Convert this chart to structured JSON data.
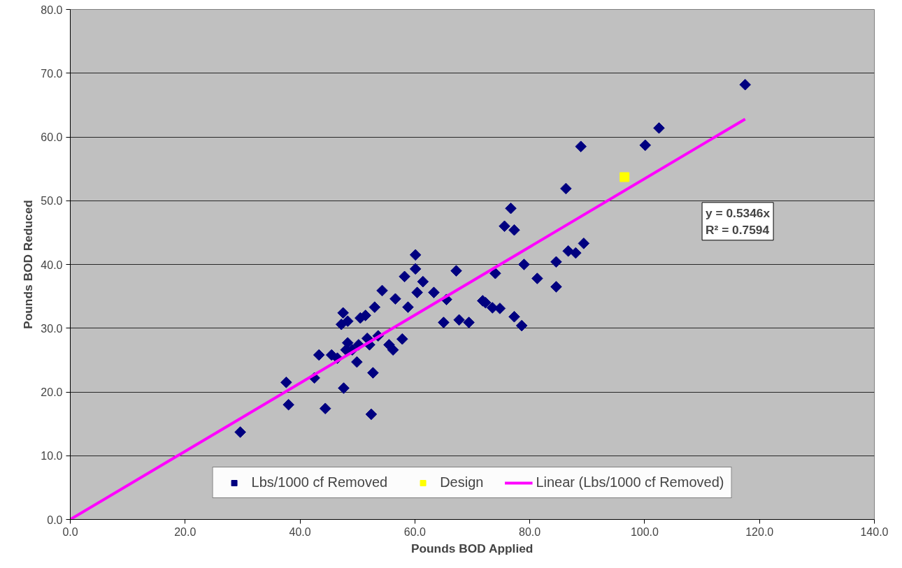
{
  "chart_data": {
    "type": "scatter",
    "xlabel": "Pounds BOD Applied",
    "ylabel": "Pounds BOD Reduced",
    "xlim": [
      0,
      140
    ],
    "ylim": [
      0,
      80
    ],
    "xticks": [
      {
        "value": 0,
        "label": "0.0"
      },
      {
        "value": 20,
        "label": "20.0"
      },
      {
        "value": 40,
        "label": "40.0"
      },
      {
        "value": 60,
        "label": "60.0"
      },
      {
        "value": 80,
        "label": "80.0"
      },
      {
        "value": 100,
        "label": "100.0"
      },
      {
        "value": 120,
        "label": "120.0"
      },
      {
        "value": 140,
        "label": "140.0"
      }
    ],
    "yticks": [
      {
        "value": 0,
        "label": "0.0"
      },
      {
        "value": 10,
        "label": "10.0"
      },
      {
        "value": 20,
        "label": "20.0"
      },
      {
        "value": 30,
        "label": "30.0"
      },
      {
        "value": 40,
        "label": "40.0"
      },
      {
        "value": 50,
        "label": "50.0"
      },
      {
        "value": 60,
        "label": "60.0"
      },
      {
        "value": 70,
        "label": "70.0"
      },
      {
        "value": 80,
        "label": "80.0"
      }
    ],
    "grid": "y",
    "legend": "bottom",
    "annotations": [
      "y = 0.5346x",
      "R² = 0.7594"
    ],
    "series": [
      {
        "name": "Lbs/1000 cf Removed",
        "marker": "diamond",
        "color": "#000080",
        "x": [
          29.6,
          37.6,
          38.0,
          42.5,
          43.3,
          44.4,
          45.5,
          46.5,
          47.2,
          47.5,
          47.6,
          48.3,
          48.3,
          48.0,
          49.1,
          49.9,
          50.2,
          50.5,
          51.4,
          51.7,
          52.1,
          52.4,
          52.7,
          53.0,
          53.6,
          54.3,
          55.5,
          56.2,
          56.6,
          57.8,
          58.2,
          58.8,
          60.1,
          60.1,
          60.4,
          61.4,
          63.3,
          65.5,
          65.0,
          67.2,
          67.7,
          69.4,
          71.8,
          72.3,
          73.5,
          74.0,
          74.8,
          75.6,
          76.7,
          77.3,
          77.3,
          78.6,
          79.0,
          81.3,
          84.6,
          84.6,
          86.3,
          86.7,
          88.0,
          88.9,
          89.4,
          100.1,
          102.5,
          117.5
        ],
        "values": [
          13.7,
          21.5,
          18.0,
          22.2,
          25.8,
          17.4,
          25.8,
          25.3,
          30.6,
          32.4,
          20.6,
          31.1,
          27.7,
          26.6,
          26.6,
          24.7,
          27.4,
          31.6,
          32.0,
          28.4,
          27.4,
          16.5,
          23.0,
          33.3,
          28.8,
          35.9,
          27.4,
          26.6,
          34.6,
          28.3,
          38.1,
          33.3,
          39.3,
          41.5,
          35.6,
          37.3,
          35.6,
          34.5,
          30.9,
          39.0,
          31.3,
          30.9,
          34.3,
          34.0,
          33.2,
          38.6,
          33.1,
          46.0,
          48.8,
          45.4,
          31.8,
          30.4,
          40.0,
          37.8,
          36.5,
          40.4,
          51.9,
          42.1,
          41.8,
          58.5,
          43.3,
          58.7,
          61.4,
          68.2
        ]
      },
      {
        "name": "Design",
        "marker": "square",
        "color": "#ffff00",
        "x": [
          96.5
        ],
        "values": [
          53.7
        ]
      },
      {
        "name": "Linear (Lbs/1000 cf Removed)",
        "type": "line",
        "line_style": "solid",
        "color": "#ff00ff",
        "x": [
          0,
          117.5
        ],
        "values": [
          0,
          62.8
        ]
      }
    ]
  }
}
